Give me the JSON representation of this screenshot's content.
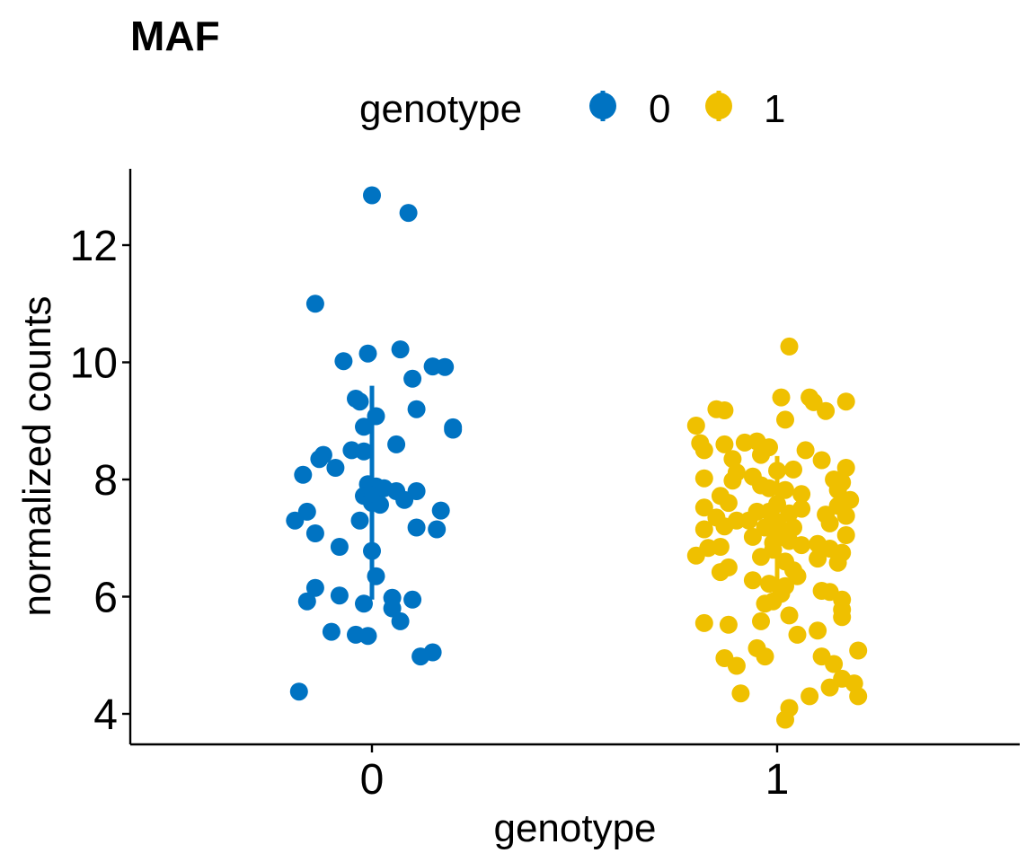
{
  "chart_data": {
    "type": "scatter",
    "title": "MAF",
    "xlabel": "genotype",
    "ylabel": "normalized counts",
    "legend": {
      "title": "genotype",
      "placement": "top",
      "entries": [
        "0",
        "1"
      ]
    },
    "categories": [
      "0",
      "1"
    ],
    "yticks": [
      "4",
      "6",
      "8",
      "10",
      "12"
    ],
    "ylim": [
      3.5,
      13.2
    ],
    "grid": false,
    "series": [
      {
        "name": "0",
        "color": "#0073C2",
        "summary": {
          "mean": 7.75,
          "sd_low": 5.95,
          "sd_high": 9.6
        },
        "points": [
          [
            0.0,
            12.85
          ],
          [
            0.09,
            12.55
          ],
          [
            -0.14,
            11.0
          ],
          [
            0.07,
            10.22
          ],
          [
            -0.01,
            10.15
          ],
          [
            -0.07,
            10.02
          ],
          [
            0.15,
            9.93
          ],
          [
            0.18,
            9.92
          ],
          [
            0.1,
            9.72
          ],
          [
            -0.04,
            9.38
          ],
          [
            -0.03,
            9.33
          ],
          [
            0.11,
            9.2
          ],
          [
            0.01,
            9.08
          ],
          [
            -0.02,
            8.9
          ],
          [
            0.2,
            8.89
          ],
          [
            0.2,
            8.85
          ],
          [
            0.06,
            8.6
          ],
          [
            -0.05,
            8.5
          ],
          [
            -0.02,
            8.48
          ],
          [
            -0.12,
            8.42
          ],
          [
            -0.13,
            8.35
          ],
          [
            -0.09,
            8.2
          ],
          [
            -0.17,
            8.08
          ],
          [
            -0.01,
            7.92
          ],
          [
            0.01,
            7.88
          ],
          [
            0.03,
            7.85
          ],
          [
            0.06,
            7.8
          ],
          [
            0.11,
            7.8
          ],
          [
            -0.02,
            7.72
          ],
          [
            0.0,
            7.7
          ],
          [
            0.08,
            7.65
          ],
          [
            0.0,
            7.6
          ],
          [
            0.02,
            7.57
          ],
          [
            0.17,
            7.47
          ],
          [
            -0.16,
            7.45
          ],
          [
            -0.19,
            7.3
          ],
          [
            -0.03,
            7.3
          ],
          [
            0.11,
            7.18
          ],
          [
            0.16,
            7.15
          ],
          [
            -0.14,
            7.08
          ],
          [
            -0.08,
            6.85
          ],
          [
            0.0,
            6.78
          ],
          [
            0.01,
            6.35
          ],
          [
            -0.14,
            6.15
          ],
          [
            -0.08,
            6.02
          ],
          [
            0.05,
            5.98
          ],
          [
            0.1,
            5.95
          ],
          [
            -0.16,
            5.92
          ],
          [
            -0.02,
            5.88
          ],
          [
            0.05,
            5.8
          ],
          [
            0.07,
            5.58
          ],
          [
            -0.1,
            5.4
          ],
          [
            -0.04,
            5.35
          ],
          [
            -0.01,
            5.33
          ],
          [
            0.15,
            5.05
          ],
          [
            0.12,
            4.98
          ],
          [
            -0.18,
            4.38
          ]
        ]
      },
      {
        "name": "1",
        "color": "#EFC000",
        "summary": {
          "mean": 7.05,
          "sd_low": 6.0,
          "sd_high": 8.4
        },
        "points": [
          [
            0.03,
            10.27
          ],
          [
            0.01,
            9.4
          ],
          [
            0.08,
            9.4
          ],
          [
            0.09,
            9.32
          ],
          [
            0.17,
            9.33
          ],
          [
            -0.15,
            9.2
          ],
          [
            -0.13,
            9.18
          ],
          [
            0.12,
            9.17
          ],
          [
            0.02,
            9.02
          ],
          [
            -0.2,
            8.92
          ],
          [
            -0.19,
            8.62
          ],
          [
            -0.13,
            8.6
          ],
          [
            -0.08,
            8.63
          ],
          [
            -0.05,
            8.65
          ],
          [
            -0.02,
            8.55
          ],
          [
            -0.18,
            8.5
          ],
          [
            0.07,
            8.5
          ],
          [
            -0.04,
            8.42
          ],
          [
            -0.11,
            8.35
          ],
          [
            0.11,
            8.33
          ],
          [
            0.17,
            8.2
          ],
          [
            -0.1,
            8.12
          ],
          [
            0.04,
            8.17
          ],
          [
            0.0,
            8.15
          ],
          [
            -0.06,
            8.05
          ],
          [
            -0.18,
            8.02
          ],
          [
            0.14,
            8.0
          ],
          [
            -0.11,
            7.98
          ],
          [
            0.16,
            7.95
          ],
          [
            -0.04,
            7.9
          ],
          [
            -0.02,
            7.85
          ],
          [
            0.02,
            7.82
          ],
          [
            0.15,
            7.82
          ],
          [
            0.06,
            7.75
          ],
          [
            -0.14,
            7.72
          ],
          [
            0.18,
            7.65
          ],
          [
            -0.12,
            7.6
          ],
          [
            0.0,
            7.58
          ],
          [
            0.15,
            7.55
          ],
          [
            -0.18,
            7.52
          ],
          [
            0.06,
            7.5
          ],
          [
            -0.05,
            7.45
          ],
          [
            -0.02,
            7.45
          ],
          [
            0.03,
            7.42
          ],
          [
            0.12,
            7.4
          ],
          [
            0.17,
            7.38
          ],
          [
            -0.15,
            7.35
          ],
          [
            -0.1,
            7.3
          ],
          [
            -0.07,
            7.3
          ],
          [
            0.0,
            7.28
          ],
          [
            0.13,
            7.25
          ],
          [
            -0.13,
            7.2
          ],
          [
            -0.03,
            7.18
          ],
          [
            0.04,
            7.18
          ],
          [
            -0.18,
            7.15
          ],
          [
            0.02,
            7.12
          ],
          [
            0.01,
            7.05
          ],
          [
            0.17,
            7.05
          ],
          [
            -0.06,
            7.02
          ],
          [
            0.03,
            6.95
          ],
          [
            -0.01,
            6.92
          ],
          [
            0.1,
            6.9
          ],
          [
            0.06,
            6.88
          ],
          [
            -0.14,
            6.85
          ],
          [
            -0.17,
            6.83
          ],
          [
            0.13,
            6.82
          ],
          [
            -0.01,
            6.8
          ],
          [
            0.16,
            6.75
          ],
          [
            -0.2,
            6.7
          ],
          [
            -0.04,
            6.68
          ],
          [
            0.1,
            6.65
          ],
          [
            0.02,
            6.6
          ],
          [
            0.15,
            6.58
          ],
          [
            -0.12,
            6.5
          ],
          [
            0.04,
            6.45
          ],
          [
            -0.14,
            6.42
          ],
          [
            0.05,
            6.35
          ],
          [
            -0.06,
            6.28
          ],
          [
            -0.02,
            6.22
          ],
          [
            0.02,
            6.18
          ],
          [
            0.11,
            6.1
          ],
          [
            0.13,
            6.08
          ],
          [
            0.01,
            6.05
          ],
          [
            0.16,
            5.95
          ],
          [
            -0.01,
            5.92
          ],
          [
            -0.03,
            5.88
          ],
          [
            0.16,
            5.78
          ],
          [
            0.03,
            5.68
          ],
          [
            0.16,
            5.65
          ],
          [
            -0.04,
            5.58
          ],
          [
            -0.18,
            5.55
          ],
          [
            -0.12,
            5.52
          ],
          [
            0.1,
            5.42
          ],
          [
            0.05,
            5.35
          ],
          [
            -0.05,
            5.12
          ],
          [
            0.2,
            5.08
          ],
          [
            -0.03,
            4.98
          ],
          [
            0.11,
            4.98
          ],
          [
            -0.13,
            4.95
          ],
          [
            0.14,
            4.85
          ],
          [
            -0.1,
            4.82
          ],
          [
            0.16,
            4.6
          ],
          [
            0.19,
            4.52
          ],
          [
            0.13,
            4.45
          ],
          [
            -0.09,
            4.35
          ],
          [
            0.08,
            4.3
          ],
          [
            0.2,
            4.3
          ],
          [
            0.03,
            4.1
          ],
          [
            0.02,
            3.9
          ]
        ]
      }
    ]
  }
}
